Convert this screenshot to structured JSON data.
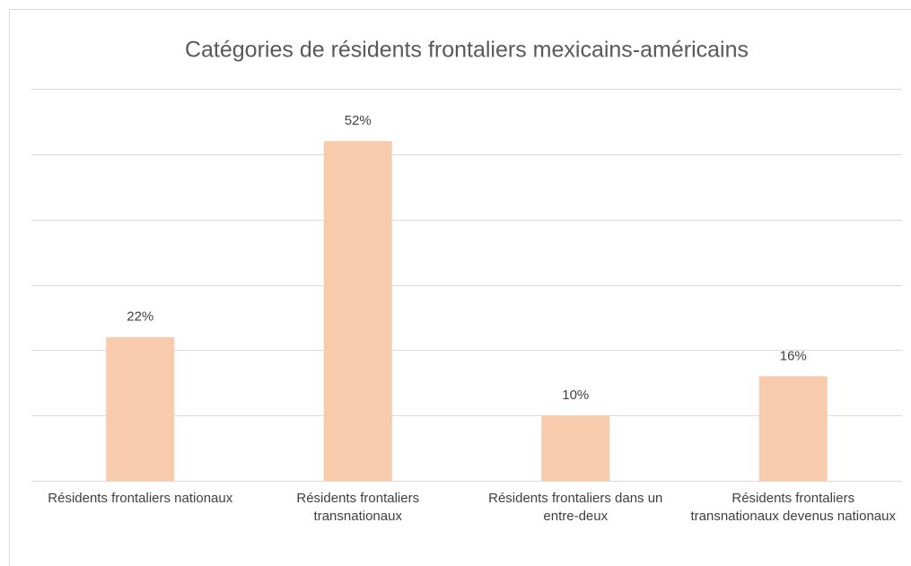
{
  "chart_data": {
    "type": "bar",
    "title": "Catégories de résidents frontaliers mexicains-américains",
    "categories": [
      "Résidents frontaliers nationaux",
      "Résidents frontaliers transnationaux",
      "Résidents frontaliers dans un entre-deux",
      "Résidents frontaliers transnationaux devenus nationaux"
    ],
    "values": [
      22,
      52,
      10,
      16
    ],
    "value_labels": [
      "22%",
      "52%",
      "10%",
      "16%"
    ],
    "color": "#f8cbad",
    "ylim": [
      0,
      60
    ],
    "yticks": [
      0,
      10,
      20,
      30,
      40,
      50,
      60
    ],
    "grid": true
  }
}
